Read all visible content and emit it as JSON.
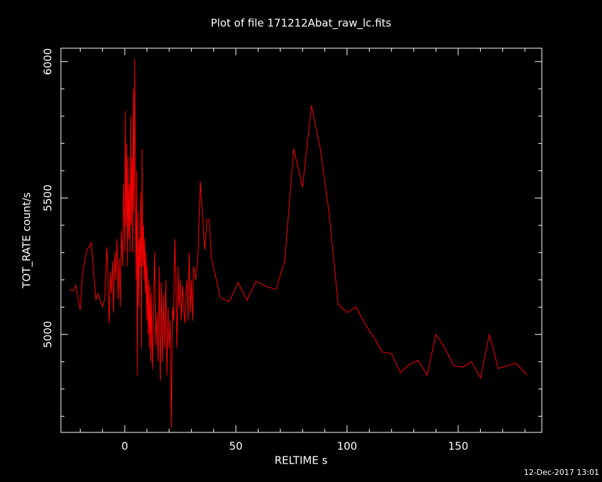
{
  "chart_data": {
    "type": "line",
    "title": "Plot of file 171212Abat_raw_lc.fits",
    "xlabel": "RELTIME  s",
    "ylabel": "TOT_RATE  count/s",
    "timestamp": "12-Dec-2017 13:01",
    "xlim": [
      -28.7,
      187.6
    ],
    "ylim": [
      4641,
      6049
    ],
    "xticks": [
      0,
      50,
      100,
      150
    ],
    "yticks": [
      5000,
      5500,
      6000
    ],
    "xminorticks": [
      -20,
      -10,
      10,
      20,
      30,
      40,
      60,
      70,
      80,
      90,
      110,
      120,
      130,
      140,
      160,
      170,
      180
    ],
    "yminorticks": [
      4700,
      4800,
      4900,
      5100,
      5200,
      5300,
      5400,
      5600,
      5700,
      5800,
      5900
    ],
    "series": [
      {
        "color": "#ff0000",
        "x": [
          -25,
          -23,
          -22,
          -20,
          -19,
          -17,
          -15,
          -13,
          -12,
          -10,
          -9,
          -8,
          -7,
          -6.5,
          -6,
          -5.5,
          -5,
          -4.5,
          -4,
          -3.5,
          -3,
          -2.5,
          -2,
          -1.5,
          -1,
          -0.5,
          0,
          0.3,
          0.6,
          0.9,
          1.2,
          1.5,
          1.8,
          2.1,
          2.4,
          2.7,
          3,
          3.3,
          3.6,
          3.9,
          4.2,
          4.5,
          4.8,
          5.1,
          5.4,
          5.7,
          6,
          6.3,
          6.6,
          6.9,
          7.2,
          7.5,
          7.8,
          8.1,
          8.4,
          8.7,
          9,
          9.3,
          9.6,
          9.9,
          10.2,
          10.5,
          10.8,
          11.1,
          11.4,
          11.7,
          12,
          12.5,
          13,
          13.5,
          14,
          14.5,
          15,
          15.5,
          16,
          16.5,
          17,
          17.5,
          18,
          18.5,
          19,
          19.5,
          20,
          20.5,
          21,
          21.5,
          22,
          22.5,
          23,
          23.5,
          24,
          24.5,
          25,
          25.5,
          26,
          26.5,
          27,
          27.5,
          28,
          28.5,
          29,
          29.5,
          30,
          30.5,
          31,
          32,
          33,
          34,
          36,
          37,
          38,
          39,
          43,
          47,
          51,
          55,
          59,
          64,
          68,
          72,
          76,
          80,
          84,
          88,
          92,
          96,
          100,
          104,
          108,
          112,
          116,
          120,
          124,
          128,
          132,
          136,
          140,
          144,
          148,
          152,
          156,
          160,
          164,
          168,
          172,
          176,
          181
        ],
        "values": [
          5165,
          5160,
          5180,
          5090,
          5220,
          5310,
          5335,
          5125,
          5150,
          5100,
          5130,
          5320,
          5040,
          5230,
          5150,
          5270,
          5080,
          5300,
          5200,
          5350,
          5130,
          5280,
          5100,
          5380,
          5250,
          5550,
          5300,
          5820,
          5400,
          5700,
          5250,
          5650,
          5350,
          5550,
          5300,
          5800,
          5400,
          5650,
          5300,
          5900,
          5450,
          6010,
          5500,
          5200,
          5600,
          4850,
          5450,
          5100,
          5350,
          5250,
          5520,
          4950,
          5680,
          5250,
          5400,
          5200,
          5350,
          5150,
          5300,
          5050,
          5250,
          5000,
          5200,
          4950,
          5180,
          4900,
          5150,
          4870,
          5120,
          5300,
          4960,
          5080,
          4900,
          5250,
          4830,
          5190,
          4900,
          5150,
          4950,
          5200,
          4850,
          5100,
          4950,
          5050,
          4660,
          5100,
          5050,
          5350,
          5200,
          4950,
          5250,
          5100,
          5200,
          5050,
          5180,
          5100,
          5040,
          5150,
          5200,
          5050,
          5300,
          5080,
          5200,
          5050,
          5250,
          5200,
          5300,
          5560,
          5310,
          5420,
          5420,
          5280,
          5135,
          5120,
          5190,
          5125,
          5195,
          5175,
          5165,
          5270,
          5680,
          5540,
          5840,
          5680,
          5440,
          5110,
          5080,
          5100,
          5040,
          4990,
          4935,
          4930,
          4860,
          4890,
          4905,
          4850,
          5000,
          4950,
          4885,
          4880,
          4900,
          4840,
          5000,
          4875,
          4885,
          4895,
          4850
        ]
      }
    ]
  }
}
